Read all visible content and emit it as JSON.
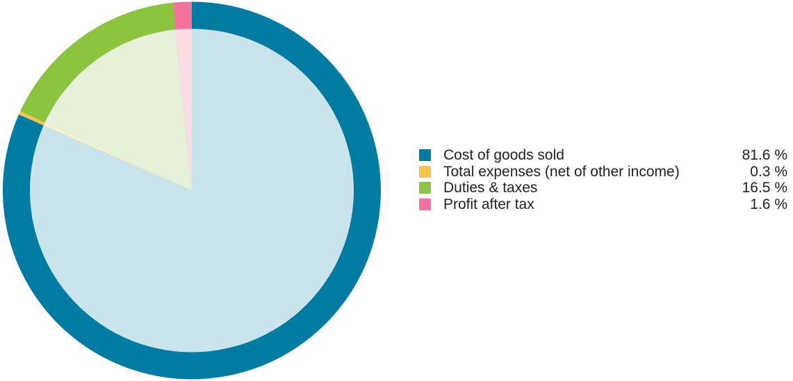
{
  "chart_data": {
    "type": "pie",
    "title": "",
    "legend_position": "right",
    "slices": [
      {
        "label": "Cost of goods sold",
        "value": 81.6,
        "display": "81.6 %",
        "color": "#007ca4",
        "inner_color": "#cae4ec"
      },
      {
        "label": "Total expenses (net of other income)",
        "value": 0.3,
        "display": "0.3 %",
        "color": "#f9c34a",
        "inner_color": "#fdf0d0"
      },
      {
        "label": "Duties & taxes",
        "value": 16.5,
        "display": "16.5 %",
        "color": "#8cc440",
        "inner_color": "#e5f2d9"
      },
      {
        "label": "Profit after tax",
        "value": 1.6,
        "display": "1.6 %",
        "color": "#f2739b",
        "inner_color": "#fcdde6"
      }
    ]
  }
}
